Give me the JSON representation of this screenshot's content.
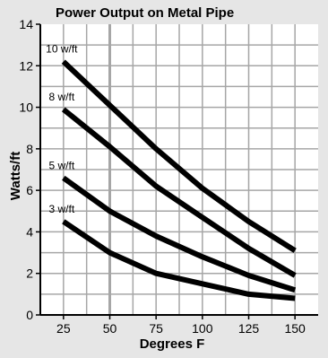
{
  "chart_data": {
    "type": "line",
    "title": "Power Output on Metal Pipe",
    "xlabel": "Degrees F",
    "ylabel": "Watts/ft",
    "x": [
      25,
      50,
      75,
      100,
      125,
      150
    ],
    "xlim": [
      12.5,
      162.5
    ],
    "ylim": [
      0,
      14
    ],
    "x_ticks": [
      25,
      50,
      75,
      100,
      125,
      150
    ],
    "y_ticks": [
      0,
      2,
      4,
      6,
      8,
      10,
      12,
      14
    ],
    "grid": true,
    "legend": "none",
    "series": [
      {
        "name": "10 w/ft",
        "values": [
          12.2,
          10.1,
          8.0,
          6.1,
          4.5,
          3.1
        ]
      },
      {
        "name": "8 w/ft",
        "values": [
          9.9,
          8.1,
          6.2,
          4.7,
          3.2,
          1.9
        ]
      },
      {
        "name": "5 w/ft",
        "values": [
          6.6,
          5.0,
          3.8,
          2.8,
          1.9,
          1.2
        ]
      },
      {
        "name": "3 w/ft",
        "values": [
          4.5,
          3.0,
          2.0,
          1.5,
          1.0,
          0.8
        ]
      }
    ],
    "colors": {
      "background": "#e6e6e6",
      "plot_background": "#ffffff",
      "grid": "#a6a6a6",
      "line": "#000000"
    }
  }
}
